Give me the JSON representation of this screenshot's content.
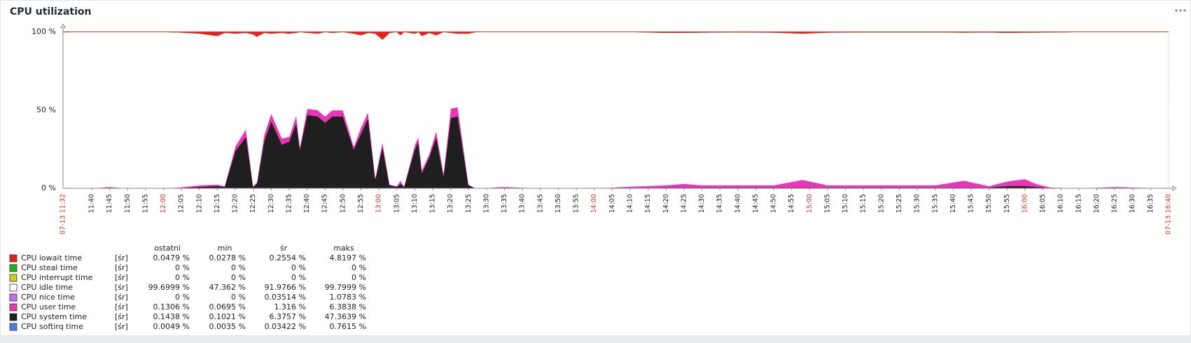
{
  "chart_data": {
    "type": "stacked_area",
    "title": "CPU utilization",
    "x": [
      "11:32",
      "11:40",
      "11:45",
      "11:50",
      "11:55",
      "12:00",
      "12:05",
      "12:10",
      "12:15",
      "12:17",
      "12:20",
      "12:23",
      "12:25",
      "12:26",
      "12:28",
      "12:30",
      "12:33",
      "12:35",
      "12:37",
      "12:38",
      "12:40",
      "12:43",
      "12:45",
      "12:47",
      "12:50",
      "12:53",
      "12:55",
      "12:57",
      "12:59",
      "13:01",
      "13:03",
      "13:05",
      "13:06",
      "13:07",
      "13:10",
      "13:11",
      "13:12",
      "13:14",
      "13:16",
      "13:18",
      "13:20",
      "13:22",
      "13:25",
      "13:27",
      "13:35",
      "13:45",
      "14:00",
      "14:10",
      "14:20",
      "14:25",
      "14:30",
      "14:40",
      "14:50",
      "14:58",
      "15:05",
      "15:15",
      "15:25",
      "15:35",
      "15:43",
      "15:50",
      "15:55",
      "16:00",
      "16:03",
      "16:07",
      "16:15",
      "16:25",
      "16:30",
      "16:40"
    ],
    "xlim": [
      "07-13 11:32",
      "07-13 16:40"
    ],
    "xticks": [
      "11:40",
      "11:45",
      "11:50",
      "11:55",
      "12:00",
      "12:05",
      "12:10",
      "12:15",
      "12:20",
      "12:25",
      "12:30",
      "12:35",
      "12:40",
      "12:45",
      "12:50",
      "12:55",
      "13:00",
      "13:05",
      "13:10",
      "13:15",
      "13:20",
      "13:25",
      "13:30",
      "13:35",
      "13:40",
      "13:45",
      "13:50",
      "13:55",
      "14:00",
      "14:05",
      "14:10",
      "14:15",
      "14:20",
      "14:25",
      "14:30",
      "14:35",
      "14:40",
      "14:45",
      "14:50",
      "14:55",
      "15:00",
      "15:05",
      "15:10",
      "15:15",
      "15:20",
      "15:25",
      "15:30",
      "15:35",
      "15:40",
      "15:45",
      "15:50",
      "15:55",
      "16:00",
      "16:05",
      "16:10",
      "16:15",
      "16:20",
      "16:25",
      "16:30",
      "16:35"
    ],
    "ylim": [
      0,
      100
    ],
    "yticks": [
      {
        "value": 0,
        "label": "0 %"
      },
      {
        "value": 50,
        "label": "50 %"
      },
      {
        "value": 100,
        "label": "100 %"
      }
    ],
    "grid": true,
    "stat_columns": [
      "ostatni",
      "min",
      "śr",
      "maks"
    ],
    "series": [
      {
        "name": "CPU iowait time",
        "color": "#e8211d",
        "function": "[śr]",
        "stats": [
          "0.0479 %",
          "0.0278 %",
          "0.2554 %",
          "4.8197 %"
        ],
        "values": [
          0.1,
          0,
          0,
          0,
          0,
          0,
          0.3,
          1,
          2.5,
          0.5,
          1,
          0.5,
          1.5,
          3,
          0.5,
          1,
          0.5,
          1,
          0.5,
          0,
          0.5,
          1,
          0,
          0.5,
          0,
          1,
          2,
          0.5,
          1,
          4.8,
          0.5,
          0,
          2,
          0,
          1,
          0,
          2.5,
          0.5,
          2,
          0,
          0.5,
          1,
          1,
          0,
          0,
          0,
          0,
          0,
          0.5,
          0.5,
          0.3,
          0.2,
          0.3,
          1,
          0.3,
          0.2,
          0.2,
          0.2,
          0.3,
          0.2,
          0.5,
          0.3,
          0.3,
          0.2,
          0,
          0,
          0,
          0
        ]
      },
      {
        "name": "CPU steal time",
        "color": "#1bb81b",
        "function": "[śr]",
        "stats": [
          "0 %",
          "0 %",
          "0 %",
          "0 %"
        ],
        "values": [
          0,
          0,
          0,
          0,
          0,
          0,
          0,
          0,
          0,
          0,
          0,
          0,
          0,
          0,
          0,
          0,
          0,
          0,
          0,
          0,
          0,
          0,
          0,
          0,
          0,
          0,
          0,
          0,
          0,
          0,
          0,
          0,
          0,
          0,
          0,
          0,
          0,
          0,
          0,
          0,
          0,
          0,
          0,
          0,
          0,
          0,
          0,
          0,
          0,
          0,
          0,
          0,
          0,
          0,
          0,
          0,
          0,
          0,
          0,
          0,
          0,
          0,
          0,
          0,
          0,
          0,
          0,
          0
        ]
      },
      {
        "name": "CPU interrupt time",
        "color": "#cccc22",
        "function": "[śr]",
        "stats": [
          "0 %",
          "0 %",
          "0 %",
          "0 %"
        ],
        "values": [
          0,
          0,
          0,
          0,
          0,
          0,
          0,
          0,
          0,
          0,
          0,
          0,
          0,
          0,
          0,
          0,
          0,
          0,
          0,
          0,
          0,
          0,
          0,
          0,
          0,
          0,
          0,
          0,
          0,
          0,
          0,
          0,
          0,
          0,
          0,
          0,
          0,
          0,
          0,
          0,
          0,
          0,
          0,
          0,
          0,
          0,
          0,
          0,
          0,
          0,
          0,
          0,
          0,
          0,
          0,
          0,
          0,
          0,
          0,
          0,
          0,
          0,
          0,
          0,
          0,
          0,
          0,
          0
        ]
      },
      {
        "name": "CPU idle time",
        "color": "#ffffff",
        "function": "[śr]",
        "stats": [
          "99.6999 %",
          "47.362 %",
          "91.9766 %",
          "99.7999 %"
        ],
        "values": [
          99.9,
          100,
          99,
          100,
          100,
          100,
          98.9,
          97,
          95,
          98,
          72,
          61.5,
          97,
          93,
          65.5,
          51,
          67.5,
          66,
          52.5,
          73,
          48.5,
          49,
          54,
          49.5,
          50,
          72,
          59,
          50.5,
          92,
          65.2,
          97,
          98.5,
          93,
          98.5,
          71,
          67,
          85.5,
          77.5,
          61,
          90,
          48.5,
          47,
          96.5,
          100,
          99,
          100,
          100,
          98.8,
          97.5,
          96.5,
          97.7,
          97.8,
          97.7,
          93.5,
          97.7,
          97.8,
          97.8,
          97.8,
          94.7,
          98.3,
          95,
          93.7,
          96.7,
          99.1,
          100,
          99,
          99.3,
          100
        ]
      },
      {
        "name": "CPU nice time",
        "color": "#c66cf0",
        "function": "[śr]",
        "stats": [
          "0 %",
          "0 %",
          "0.03514 %",
          "1.0783 %"
        ],
        "values": [
          0,
          0,
          0,
          0,
          0,
          0,
          0,
          0,
          0,
          0,
          0,
          0,
          0,
          0,
          0,
          0,
          0,
          0,
          0,
          0,
          0,
          0,
          0,
          0,
          0,
          0,
          0,
          0,
          0,
          0,
          0,
          0,
          0,
          0,
          0,
          0,
          0,
          0,
          0,
          0,
          0,
          0,
          0,
          0,
          0,
          0,
          0,
          0,
          0,
          0,
          0,
          0,
          0,
          0,
          0,
          0,
          0,
          0,
          0,
          0,
          0,
          0,
          0,
          0,
          0,
          0,
          0,
          0
        ]
      },
      {
        "name": "CPU user time",
        "color": "#e935b7",
        "function": "[śr]",
        "stats": [
          "0.1306 %",
          "0.0695 %",
          "1.316 %",
          "6.3838 %"
        ],
        "values": [
          0,
          0,
          0.8,
          0,
          0,
          0,
          0.5,
          1,
          1,
          0.5,
          3,
          5,
          0.5,
          1,
          4,
          5,
          4,
          3,
          5,
          2,
          4,
          4,
          4,
          4,
          4,
          2,
          4,
          4,
          1,
          3,
          0.5,
          0.5,
          2,
          0.5,
          3,
          3,
          2,
          2,
          4,
          2,
          6,
          6,
          0.5,
          0,
          0.8,
          0,
          0,
          1,
          1.5,
          2.5,
          1.5,
          1.5,
          1.5,
          5,
          1.5,
          1.5,
          1.5,
          1.5,
          4.5,
          1,
          3,
          4.5,
          2,
          0.5,
          0,
          0.8,
          0.5,
          0
        ]
      },
      {
        "name": "CPU system time",
        "color": "#1f1f1f",
        "function": "[śr]",
        "stats": [
          "0.1438 %",
          "0.1021 %",
          "6.3757 %",
          "47.3639 %"
        ],
        "values": [
          0,
          0,
          0.2,
          0,
          0,
          0,
          0.3,
          1,
          1.5,
          1,
          24,
          33,
          1,
          3,
          30,
          43,
          28,
          30,
          42,
          25,
          47,
          46,
          42,
          46,
          46,
          25,
          35,
          45,
          6,
          27,
          2,
          1,
          3,
          1,
          25,
          30,
          10,
          20,
          33,
          8,
          45,
          46,
          2,
          0,
          0.2,
          0,
          0,
          0.2,
          0.5,
          0.5,
          0.5,
          0.5,
          0.5,
          0.5,
          0.5,
          0.5,
          0.5,
          0.5,
          0.5,
          0.5,
          1.5,
          1.5,
          1,
          0.2,
          0,
          0.2,
          0.2,
          0
        ]
      },
      {
        "name": "CPU softirq time",
        "color": "#4b7ee8",
        "function": "[śr]",
        "stats": [
          "0.0049 %",
          "0.0035 %",
          "0.03422 %",
          "0.7615 %"
        ],
        "values": [
          0,
          0,
          0,
          0,
          0,
          0,
          0,
          0,
          0,
          0,
          0,
          0,
          0,
          0,
          0,
          0,
          0,
          0,
          0,
          0,
          0,
          0,
          0,
          0,
          0,
          0,
          0,
          0,
          0,
          0,
          0,
          0,
          0,
          0,
          0,
          0,
          0,
          0,
          0,
          0,
          0,
          0,
          0,
          0,
          0,
          0,
          0,
          0,
          0,
          0,
          0,
          0,
          0,
          0,
          0,
          0,
          0,
          0,
          0,
          0,
          0,
          0,
          0,
          0,
          0,
          0,
          0,
          0
        ]
      }
    ]
  }
}
